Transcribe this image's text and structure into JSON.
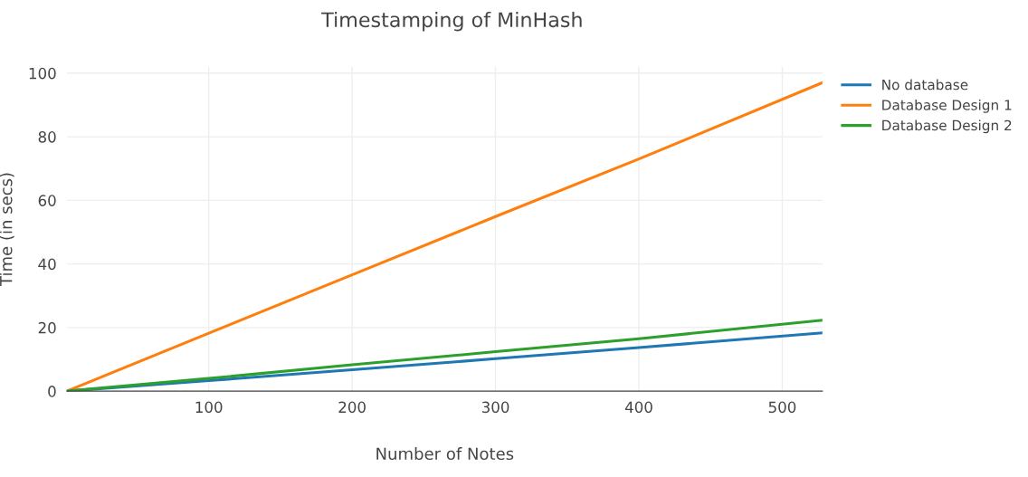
{
  "chart_data": {
    "type": "line",
    "title": "Timestamping of MinHash",
    "xlabel": "Number of Notes",
    "ylabel": "Time (in secs)",
    "x": [
      1,
      100,
      200,
      300,
      400,
      528
    ],
    "series": [
      {
        "name": "No database",
        "color": "#1f77b4",
        "values": [
          0,
          3.3,
          6.7,
          10.2,
          13.7,
          18.3
        ]
      },
      {
        "name": "Database Design 1",
        "color": "#ff7f0e",
        "values": [
          0,
          18.2,
          36.6,
          54.9,
          73.0,
          97.0
        ]
      },
      {
        "name": "Database Design 2",
        "color": "#2ca02c",
        "values": [
          0,
          4.0,
          8.3,
          12.4,
          16.5,
          22.3
        ]
      }
    ],
    "xlim": [
      1,
      528
    ],
    "ylim": [
      0,
      102
    ],
    "xticks": [
      100,
      200,
      300,
      400,
      500
    ],
    "yticks": [
      0,
      20,
      40,
      60,
      80,
      100
    ],
    "grid": true,
    "legend": "top right",
    "marker": "none",
    "line_style": "solid"
  }
}
